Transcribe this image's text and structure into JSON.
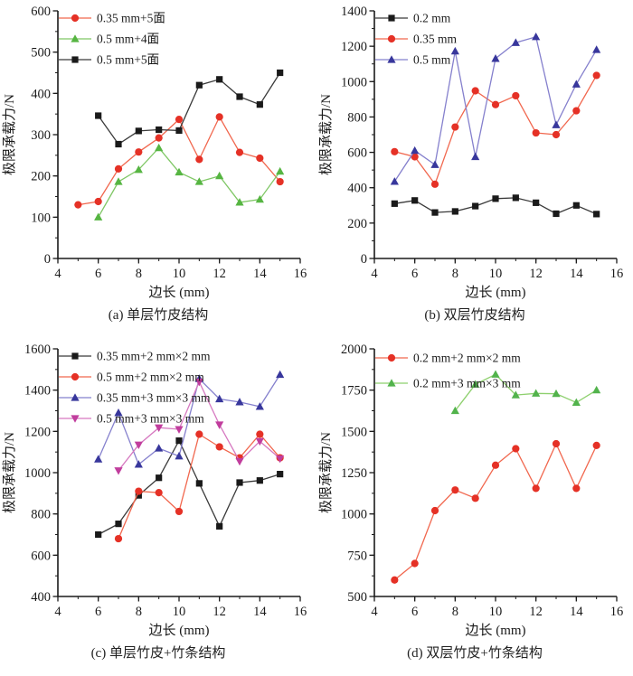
{
  "figure": {
    "background": "#ffffff",
    "axis_color": "#1a1a1a"
  },
  "chart_data": [
    {
      "type": "line",
      "caption": "(a) 单层竹皮结构",
      "xlabel": "边长 (mm)",
      "ylabel": "极限承载力/N",
      "xlim": [
        4,
        16
      ],
      "ylim": [
        0,
        600
      ],
      "xticks": [
        4,
        6,
        8,
        10,
        12,
        14,
        16
      ],
      "yticks": [
        0,
        100,
        200,
        300,
        400,
        500,
        600
      ],
      "xminor": 1,
      "yminor": 50,
      "legend_position": "top-left-inside",
      "legend_y": 20,
      "legend_step": 23,
      "grid": false,
      "series": [
        {
          "name": "0.35 mm+5面",
          "marker": "circle",
          "color": "#e53126",
          "line_color": "#f1674e",
          "points": [
            [
              5,
              130
            ],
            [
              6,
              138
            ],
            [
              7,
              217
            ],
            [
              8,
              258
            ],
            [
              9,
              292
            ],
            [
              10,
              337
            ],
            [
              11,
              240
            ],
            [
              12,
              343
            ],
            [
              13,
              257
            ],
            [
              14,
              243
            ],
            [
              15,
              186
            ]
          ]
        },
        {
          "name": "0.5 mm+4面",
          "marker": "triangle-up",
          "color": "#56b542",
          "line_color": "#7fc765",
          "points": [
            [
              6,
              100
            ],
            [
              7,
              186
            ],
            [
              8,
              215
            ],
            [
              9,
              268
            ],
            [
              10,
              209
            ],
            [
              11,
              186
            ],
            [
              12,
              200
            ],
            [
              13,
              136
            ],
            [
              14,
              143
            ],
            [
              15,
              211
            ]
          ]
        },
        {
          "name": "0.5 mm+5面",
          "marker": "square",
          "color": "#1a1a1a",
          "line_color": "#3a3a3a",
          "points": [
            [
              6,
              346
            ],
            [
              7,
              277
            ],
            [
              8,
              309
            ],
            [
              9,
              312
            ],
            [
              10,
              310
            ],
            [
              11,
              420
            ],
            [
              12,
              434
            ],
            [
              13,
              392
            ],
            [
              14,
              373
            ],
            [
              15,
              450
            ]
          ]
        }
      ]
    },
    {
      "type": "line",
      "caption": "(b) 双层竹皮结构",
      "xlabel": "边长 (mm)",
      "ylabel": "极限承载力/N",
      "xlim": [
        4,
        16
      ],
      "ylim": [
        0,
        1400
      ],
      "xticks": [
        4,
        6,
        8,
        10,
        12,
        14,
        16
      ],
      "yticks": [
        0,
        200,
        400,
        600,
        800,
        1000,
        1200,
        1400
      ],
      "xminor": 1,
      "yminor": 100,
      "legend_position": "top-left-inside",
      "legend_y": 20,
      "legend_step": 23,
      "grid": false,
      "series": [
        {
          "name": "0.2 mm",
          "marker": "square",
          "color": "#1a1a1a",
          "line_color": "#3a3a3a",
          "points": [
            [
              5,
              310
            ],
            [
              6,
              328
            ],
            [
              7,
              260
            ],
            [
              8,
              266
            ],
            [
              9,
              296
            ],
            [
              10,
              338
            ],
            [
              11,
              343
            ],
            [
              12,
              315
            ],
            [
              13,
              253
            ],
            [
              14,
              300
            ],
            [
              15,
              251
            ]
          ]
        },
        {
          "name": "0.35 mm",
          "marker": "circle",
          "color": "#e53126",
          "line_color": "#f1674e",
          "points": [
            [
              5,
              604
            ],
            [
              6,
              575
            ],
            [
              7,
              420
            ],
            [
              8,
              743
            ],
            [
              9,
              948
            ],
            [
              10,
              870
            ],
            [
              11,
              920
            ],
            [
              12,
              710
            ],
            [
              13,
              700
            ],
            [
              14,
              835
            ],
            [
              15,
              1035
            ]
          ]
        },
        {
          "name": "0.5 mm",
          "marker": "triangle-up",
          "color": "#38379c",
          "line_color": "#8580cd",
          "points": [
            [
              5,
              435
            ],
            [
              6,
              610
            ],
            [
              7,
              530
            ],
            [
              8,
              1172
            ],
            [
              9,
              575
            ],
            [
              10,
              1130
            ],
            [
              11,
              1220
            ],
            [
              12,
              1253
            ],
            [
              13,
              755
            ],
            [
              14,
              985
            ],
            [
              15,
              1180
            ]
          ]
        }
      ]
    },
    {
      "type": "line",
      "caption": "(c) 单层竹皮+竹条结构",
      "xlabel": "边长 (mm)",
      "ylabel": "极限承载力/N",
      "xlim": [
        4,
        16
      ],
      "ylim": [
        400,
        1600
      ],
      "xticks": [
        4,
        6,
        8,
        10,
        12,
        14,
        16
      ],
      "yticks": [
        400,
        600,
        800,
        1000,
        1200,
        1400,
        1600
      ],
      "xminor": 1,
      "yminor": 100,
      "legend_position": "top-left-inside",
      "legend_y": 20,
      "legend_step": 23,
      "grid": false,
      "series": [
        {
          "name": "0.35 mm+2 mm×2 mm",
          "marker": "square",
          "color": "#1a1a1a",
          "line_color": "#3a3a3a",
          "points": [
            [
              6,
              700
            ],
            [
              7,
              752
            ],
            [
              8,
              890
            ],
            [
              9,
              975
            ],
            [
              10,
              1155
            ],
            [
              11,
              948
            ],
            [
              12,
              740
            ],
            [
              13,
              952
            ],
            [
              14,
              962
            ],
            [
              15,
              993
            ]
          ]
        },
        {
          "name": "0.5 mm+2 mm×2 mm",
          "marker": "circle",
          "color": "#e53126",
          "line_color": "#f1674e",
          "points": [
            [
              7,
              680
            ],
            [
              8,
              910
            ],
            [
              9,
              903
            ],
            [
              10,
              812
            ],
            [
              11,
              1186
            ],
            [
              12,
              1125
            ],
            [
              13,
              1072
            ],
            [
              14,
              1186
            ],
            [
              15,
              1072
            ]
          ]
        },
        {
          "name": "0.35 mm+3 mm×3 mm",
          "marker": "triangle-up",
          "color": "#38379c",
          "line_color": "#8580cd",
          "points": [
            [
              6,
              1065
            ],
            [
              7,
              1290
            ],
            [
              8,
              1040
            ],
            [
              9,
              1118
            ],
            [
              10,
              1080
            ],
            [
              11,
              1455
            ],
            [
              12,
              1357
            ],
            [
              13,
              1342
            ],
            [
              14,
              1320
            ],
            [
              15,
              1475
            ]
          ]
        },
        {
          "name": "0.5 mm+3 mm×3 mm",
          "marker": "triangle-down",
          "color": "#c13d9d",
          "line_color": "#d678c0",
          "points": [
            [
              7,
              1010
            ],
            [
              8,
              1135
            ],
            [
              9,
              1218
            ],
            [
              10,
              1210
            ],
            [
              11,
              1440
            ],
            [
              12,
              1232
            ],
            [
              13,
              1055
            ],
            [
              14,
              1152
            ],
            [
              15,
              1068
            ]
          ]
        }
      ]
    },
    {
      "type": "line",
      "caption": "(d) 双层竹皮+竹条结构",
      "xlabel": "边长 (mm)",
      "ylabel": "极限承载力/N",
      "xlim": [
        4,
        16
      ],
      "ylim": [
        500,
        2000
      ],
      "xticks": [
        4,
        6,
        8,
        10,
        12,
        14,
        16
      ],
      "yticks": [
        500,
        750,
        1000,
        1250,
        1500,
        1750,
        2000
      ],
      "xminor": 1,
      "yminor": 125,
      "legend_position": "top-left-inside",
      "legend_y": 22,
      "legend_step": 28,
      "grid": false,
      "series": [
        {
          "name": "0.2 mm+2 mm×2 mm",
          "marker": "circle",
          "color": "#e53126",
          "line_color": "#f1674e",
          "points": [
            [
              5,
              600
            ],
            [
              6,
              700
            ],
            [
              7,
              1020
            ],
            [
              8,
              1145
            ],
            [
              9,
              1095
            ],
            [
              10,
              1295
            ],
            [
              11,
              1395
            ],
            [
              12,
              1155
            ],
            [
              13,
              1425
            ],
            [
              14,
              1155
            ],
            [
              15,
              1415
            ]
          ]
        },
        {
          "name": "0.2 mm+3 mm×3 mm",
          "marker": "triangle-up",
          "color": "#52b34c",
          "line_color": "#8ed06e",
          "points": [
            [
              8,
              1625
            ],
            [
              9,
              1785
            ],
            [
              10,
              1845
            ],
            [
              11,
              1720
            ],
            [
              12,
              1730
            ],
            [
              13,
              1728
            ],
            [
              14,
              1675
            ],
            [
              15,
              1750
            ]
          ]
        }
      ]
    }
  ]
}
